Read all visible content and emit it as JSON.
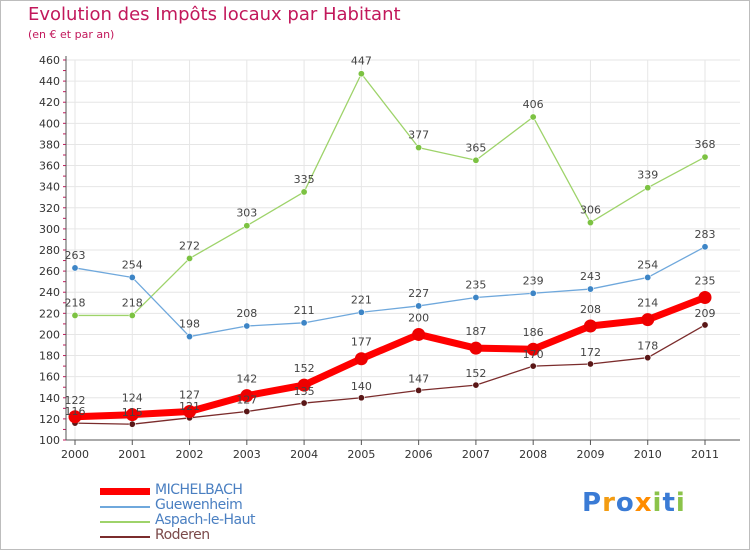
{
  "chart_data": {
    "type": "line",
    "title": "Evolution des Impôts locaux par Habitant",
    "subtitle": "(en € et par an)",
    "xlabel": "",
    "ylabel": "",
    "categories": [
      "2000",
      "2001",
      "2002",
      "2003",
      "2004",
      "2005",
      "2006",
      "2007",
      "2008",
      "2009",
      "2010",
      "2011"
    ],
    "ylim": [
      100,
      460
    ],
    "yticks": [
      100,
      120,
      140,
      160,
      180,
      200,
      220,
      240,
      260,
      280,
      300,
      320,
      340,
      360,
      380,
      400,
      420,
      440,
      460
    ],
    "series": [
      {
        "name": "MICHELBACH",
        "color": "#ff0000",
        "values": [
          122,
          124,
          127,
          142,
          152,
          177,
          200,
          187,
          186,
          208,
          214,
          235
        ]
      },
      {
        "name": "Guewenheim",
        "color": "#5b9bd5",
        "values": [
          263,
          254,
          198,
          208,
          211,
          221,
          227,
          235,
          239,
          243,
          254,
          283
        ]
      },
      {
        "name": "Aspach-le-Haut",
        "color": "#8fd14f",
        "values": [
          218,
          218,
          272,
          303,
          335,
          447,
          377,
          365,
          406,
          306,
          339,
          368
        ]
      },
      {
        "name": "Roderen",
        "color": "#6b1e1e",
        "values": [
          116,
          115,
          121,
          127,
          135,
          140,
          147,
          152,
          170,
          172,
          178,
          209
        ]
      }
    ]
  },
  "logo": {
    "text": "Proxiti"
  }
}
